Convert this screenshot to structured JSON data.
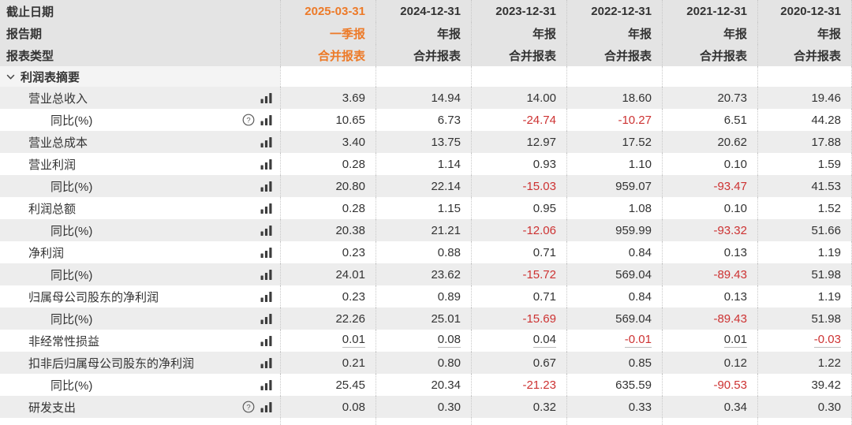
{
  "colors": {
    "accent_orange": "#ED7A28",
    "negative_red": "#CD3232",
    "header_bg": "#E4E4E4",
    "stripe_bg": "#EDEDED",
    "section_bg": "#F4F4F4",
    "text": "#333333",
    "divider": "#C8C8C8"
  },
  "header": {
    "row_labels": [
      "截止日期",
      "报告期",
      "报表类型"
    ],
    "columns": [
      {
        "date": "2025-03-31",
        "period": "一季报",
        "type": "合并报表",
        "highlight": true
      },
      {
        "date": "2024-12-31",
        "period": "年报",
        "type": "合并报表",
        "highlight": false
      },
      {
        "date": "2023-12-31",
        "period": "年报",
        "type": "合并报表",
        "highlight": false
      },
      {
        "date": "2022-12-31",
        "period": "年报",
        "type": "合并报表",
        "highlight": false
      },
      {
        "date": "2021-12-31",
        "period": "年报",
        "type": "合并报表",
        "highlight": false
      },
      {
        "date": "2020-12-31",
        "period": "年报",
        "type": "合并报表",
        "highlight": false
      }
    ]
  },
  "section": {
    "label": "利润表摘要",
    "icon": "chevron-down-icon"
  },
  "icons": {
    "chart": "bar-chart-icon",
    "help": "question-mark-icon",
    "collapse": "chevron-down-icon"
  },
  "rows": [
    {
      "label": "营业总收入",
      "indent": 1,
      "help": false,
      "underline": false,
      "values": [
        "3.69",
        "14.94",
        "14.00",
        "18.60",
        "20.73",
        "19.46"
      ]
    },
    {
      "label": "同比(%)",
      "indent": 2,
      "help": true,
      "underline": false,
      "values": [
        "10.65",
        "6.73",
        "-24.74",
        "-10.27",
        "6.51",
        "44.28"
      ]
    },
    {
      "label": "营业总成本",
      "indent": 1,
      "help": false,
      "underline": false,
      "values": [
        "3.40",
        "13.75",
        "12.97",
        "17.52",
        "20.62",
        "17.88"
      ]
    },
    {
      "label": "营业利润",
      "indent": 1,
      "help": false,
      "underline": false,
      "values": [
        "0.28",
        "1.14",
        "0.93",
        "1.10",
        "0.10",
        "1.59"
      ]
    },
    {
      "label": "同比(%)",
      "indent": 2,
      "help": false,
      "underline": false,
      "values": [
        "20.80",
        "22.14",
        "-15.03",
        "959.07",
        "-93.47",
        "41.53"
      ]
    },
    {
      "label": "利润总额",
      "indent": 1,
      "help": false,
      "underline": false,
      "values": [
        "0.28",
        "1.15",
        "0.95",
        "1.08",
        "0.10",
        "1.52"
      ]
    },
    {
      "label": "同比(%)",
      "indent": 2,
      "help": false,
      "underline": false,
      "values": [
        "20.38",
        "21.21",
        "-12.06",
        "959.99",
        "-93.32",
        "51.66"
      ]
    },
    {
      "label": "净利润",
      "indent": 1,
      "help": false,
      "underline": false,
      "values": [
        "0.23",
        "0.88",
        "0.71",
        "0.84",
        "0.13",
        "1.19"
      ]
    },
    {
      "label": "同比(%)",
      "indent": 2,
      "help": false,
      "underline": false,
      "values": [
        "24.01",
        "23.62",
        "-15.72",
        "569.04",
        "-89.43",
        "51.98"
      ]
    },
    {
      "label": "归属母公司股东的净利润",
      "indent": 1,
      "help": false,
      "underline": false,
      "values": [
        "0.23",
        "0.89",
        "0.71",
        "0.84",
        "0.13",
        "1.19"
      ]
    },
    {
      "label": "同比(%)",
      "indent": 2,
      "help": false,
      "underline": false,
      "values": [
        "22.26",
        "25.01",
        "-15.69",
        "569.04",
        "-89.43",
        "51.98"
      ]
    },
    {
      "label": "非经常性损益",
      "indent": 1,
      "help": false,
      "underline": true,
      "values": [
        "0.01",
        "0.08",
        "0.04",
        "-0.01",
        "0.01",
        "-0.03"
      ]
    },
    {
      "label": "扣非后归属母公司股东的净利润",
      "indent": 1,
      "help": false,
      "underline": false,
      "values": [
        "0.21",
        "0.80",
        "0.67",
        "0.85",
        "0.12",
        "1.22"
      ]
    },
    {
      "label": "同比(%)",
      "indent": 2,
      "help": false,
      "underline": false,
      "values": [
        "25.45",
        "20.34",
        "-21.23",
        "635.59",
        "-90.53",
        "39.42"
      ]
    },
    {
      "label": "研发支出",
      "indent": 1,
      "help": true,
      "underline": false,
      "values": [
        "0.08",
        "0.30",
        "0.32",
        "0.33",
        "0.34",
        "0.30"
      ]
    }
  ]
}
